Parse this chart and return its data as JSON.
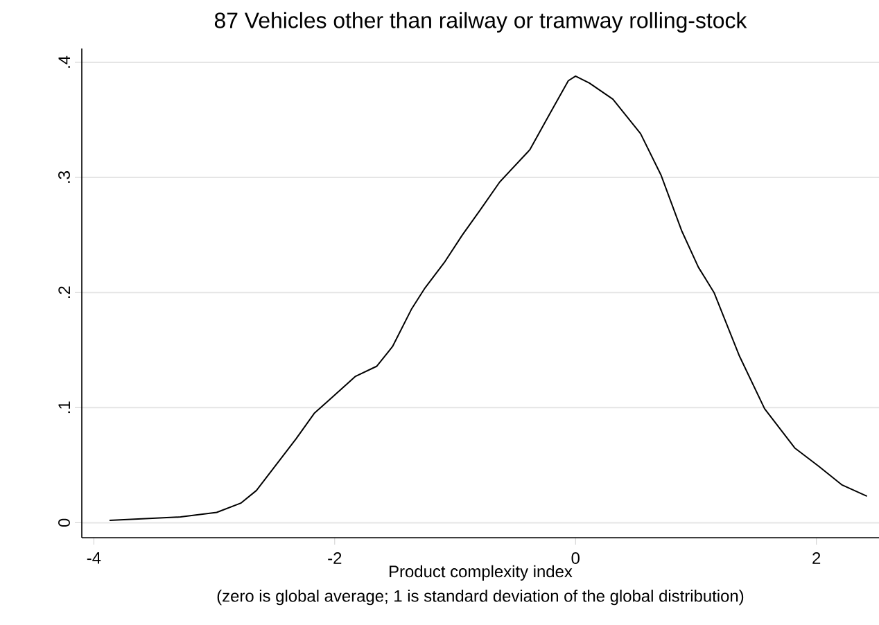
{
  "chart_data": {
    "type": "line",
    "title": "87 Vehicles other than railway or tramway rolling-stock",
    "xlabel": "Product complexity index",
    "annotations": [
      "(zero is global average; 1 is standard deviation of the global distribution)"
    ],
    "x": [
      -3.87,
      -3.28,
      -2.98,
      -2.78,
      -2.65,
      -2.32,
      -2.17,
      -2.02,
      -1.83,
      -1.65,
      -1.52,
      -1.36,
      -1.25,
      -1.09,
      -0.94,
      -0.79,
      -0.63,
      -0.38,
      -0.21,
      -0.06,
      0.0,
      0.115,
      0.31,
      0.54,
      0.71,
      0.88,
      1.02,
      1.15,
      1.36,
      1.57,
      1.82,
      2.02,
      2.21,
      2.42
    ],
    "series": [
      {
        "color": "#000000",
        "values": [
          0.002,
          0.005,
          0.009,
          0.017,
          0.028,
          0.073,
          0.095,
          0.109,
          0.127,
          0.136,
          0.153,
          0.186,
          0.204,
          0.226,
          0.25,
          0.272,
          0.296,
          0.324,
          0.356,
          0.384,
          0.388,
          0.382,
          0.368,
          0.338,
          0.302,
          0.254,
          0.222,
          0.2,
          0.145,
          0.099,
          0.065,
          0.049,
          0.033,
          0.023
        ]
      }
    ],
    "xlim": [
      -4.1,
      2.52
    ],
    "ylim": [
      -0.013,
      0.412
    ],
    "xticks": [
      -4,
      -2,
      0,
      2
    ],
    "yticks": [
      {
        "value": 0,
        "label": "0"
      },
      {
        "value": 0.1,
        "label": ".1"
      },
      {
        "value": 0.2,
        "label": ".2"
      },
      {
        "value": 0.3,
        "label": ".3"
      },
      {
        "value": 0.4,
        "label": ".4"
      }
    ],
    "grid": "y",
    "marker": "none",
    "line_style": "solid"
  }
}
